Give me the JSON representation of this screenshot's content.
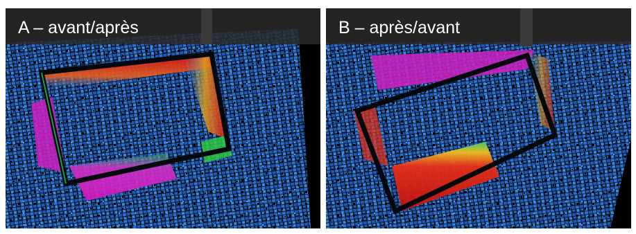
{
  "panels": [
    {
      "label": "A – avant/après"
    },
    {
      "label": "B – après/avant"
    }
  ]
}
